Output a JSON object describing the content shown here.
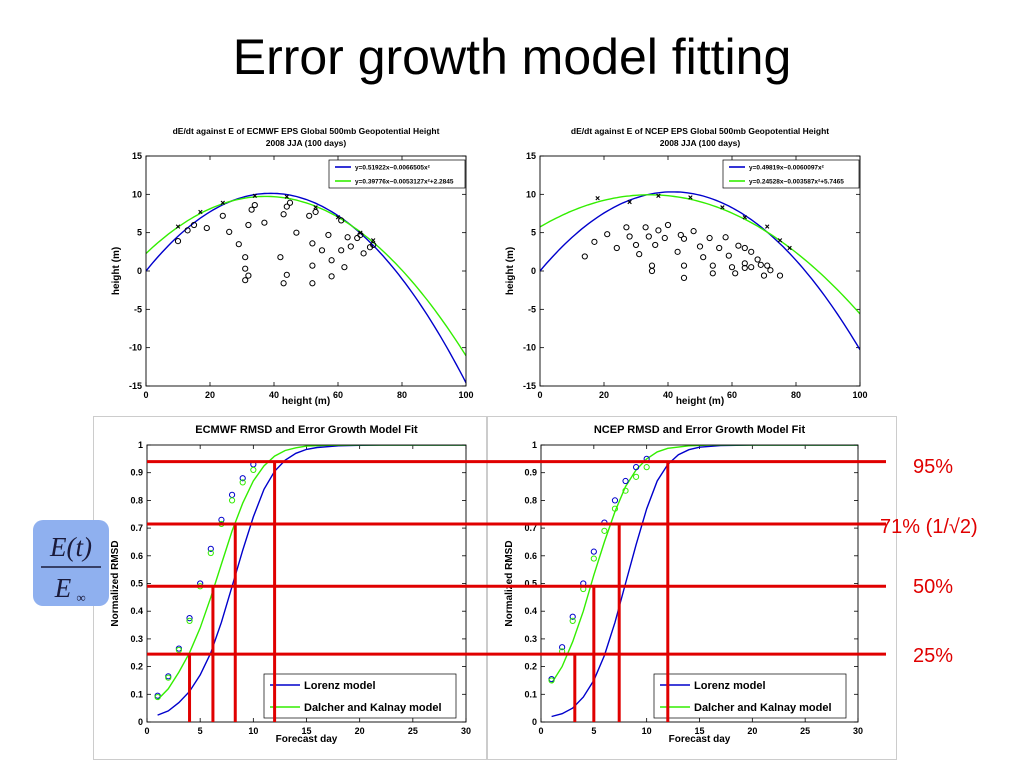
{
  "slide": {
    "title": "Error growth model fitting",
    "formula": {
      "numerator": "E(t)",
      "denominator": "E",
      "subscript": "∞"
    },
    "levels": [
      {
        "label": "95%",
        "value": 0.94
      },
      {
        "label": "71% (1/√2)",
        "value": 0.715
      },
      {
        "label": "50%",
        "value": 0.49
      },
      {
        "label": "25%",
        "value": 0.245
      }
    ],
    "ecmwf_crossings": [
      4,
      6.2,
      8.3,
      12
    ],
    "ncep_crossings": [
      3.2,
      5,
      7.4,
      12
    ],
    "line_color": "#e00000"
  },
  "chart_data": [
    {
      "type": "scatter",
      "title": "dE/dt against E of ECMWF EPS Global 500mb Geopotential Height",
      "subtitle": "2008 JJA (100 days)",
      "xlabel": "height (m)",
      "ylabel": "height (m)",
      "xlim": [
        0,
        100
      ],
      "ylim": [
        -15,
        15
      ],
      "xticks": [
        0,
        20,
        40,
        60,
        80,
        100
      ],
      "yticks": [
        -15,
        -10,
        -5,
        0,
        5,
        10,
        15
      ],
      "legend_position": "top-right",
      "series": [
        {
          "name": "y=0.51922x−0.0066505x²",
          "kind": "curve",
          "color": "#0000cc",
          "coef": [
            0,
            0.51922,
            -0.0066505
          ]
        },
        {
          "name": "y=0.39776x−0.0053127x²+2.2845",
          "kind": "curve",
          "color": "#33ee00",
          "coef": [
            2.2845,
            0.39776,
            -0.0053127
          ]
        },
        {
          "kind": "circles",
          "points": [
            [
              10,
              3.9
            ],
            [
              13,
              5.3
            ],
            [
              15,
              6
            ],
            [
              19,
              5.6
            ],
            [
              24,
              7.2
            ],
            [
              26,
              5.1
            ],
            [
              29,
              3.5
            ],
            [
              31,
              1.8
            ],
            [
              31,
              0.3
            ],
            [
              32,
              -0.6
            ],
            [
              31,
              -1.2
            ],
            [
              32,
              6
            ],
            [
              33,
              8
            ],
            [
              34,
              8.6
            ],
            [
              37,
              6.3
            ],
            [
              43,
              7.4
            ],
            [
              44,
              8.4
            ],
            [
              45,
              8.9
            ],
            [
              42,
              1.8
            ],
            [
              44,
              -0.5
            ],
            [
              43,
              -1.6
            ],
            [
              47,
              5
            ],
            [
              51,
              7.2
            ],
            [
              53,
              7.7
            ],
            [
              52,
              3.6
            ],
            [
              55,
              2.7
            ],
            [
              52,
              0.7
            ],
            [
              52,
              -1.6
            ],
            [
              57,
              4.7
            ],
            [
              58,
              1.4
            ],
            [
              58,
              -0.7
            ],
            [
              61,
              6.6
            ],
            [
              61,
              2.7
            ],
            [
              62,
              0.5
            ],
            [
              63,
              4.4
            ],
            [
              64,
              3.2
            ],
            [
              66,
              4.3
            ],
            [
              67,
              4.7
            ],
            [
              68,
              2.3
            ],
            [
              70,
              3.1
            ],
            [
              71,
              3.4
            ]
          ]
        },
        {
          "kind": "crosses",
          "points": [
            [
              10,
              5.8
            ],
            [
              17,
              7.7
            ],
            [
              24,
              8.9
            ],
            [
              34,
              9.8
            ],
            [
              44,
              9.7
            ],
            [
              53,
              8.3
            ],
            [
              60,
              7
            ],
            [
              67,
              5
            ],
            [
              71,
              4
            ]
          ]
        }
      ]
    },
    {
      "type": "scatter",
      "title": "dE/dt against E of NCEP EPS Global 500mb Geopotential Height",
      "subtitle": "2008 JJA (100 days)",
      "xlabel": "height (m)",
      "ylabel": "height (m)",
      "xlim": [
        0,
        100
      ],
      "ylim": [
        -15,
        15
      ],
      "xticks": [
        0,
        20,
        40,
        60,
        80,
        100
      ],
      "yticks": [
        -15,
        -10,
        -5,
        0,
        5,
        10,
        15
      ],
      "legend_position": "top-right",
      "series": [
        {
          "name": "y=0.49819x−0.0060097x²",
          "kind": "curve",
          "color": "#0000cc",
          "coef": [
            0,
            0.49819,
            -0.0060097
          ]
        },
        {
          "name": "y=0.24528x−0.003587x²+5.7465",
          "kind": "curve",
          "color": "#33ee00",
          "coef": [
            5.7465,
            0.24528,
            -0.003587
          ]
        },
        {
          "kind": "circles",
          "points": [
            [
              14,
              1.9
            ],
            [
              17,
              3.8
            ],
            [
              21,
              4.8
            ],
            [
              24,
              3
            ],
            [
              27,
              5.7
            ],
            [
              28,
              4.5
            ],
            [
              30,
              3.4
            ],
            [
              31,
              2.2
            ],
            [
              33,
              5.7
            ],
            [
              34,
              4.5
            ],
            [
              35,
              0
            ],
            [
              35,
              0.7
            ],
            [
              36,
              3.4
            ],
            [
              37,
              5.3
            ],
            [
              39,
              4.3
            ],
            [
              40,
              6
            ],
            [
              43,
              2.5
            ],
            [
              44,
              4.7
            ],
            [
              45,
              4.2
            ],
            [
              45,
              0.7
            ],
            [
              45,
              -0.9
            ],
            [
              48,
              5.2
            ],
            [
              50,
              3.2
            ],
            [
              51,
              1.8
            ],
            [
              53,
              4.3
            ],
            [
              54,
              0.7
            ],
            [
              54,
              -0.3
            ],
            [
              56,
              3
            ],
            [
              58,
              4.4
            ],
            [
              59,
              2
            ],
            [
              60,
              0.5
            ],
            [
              61,
              -0.3
            ],
            [
              62,
              3.3
            ],
            [
              64,
              3
            ],
            [
              64,
              1
            ],
            [
              64,
              0.4
            ],
            [
              66,
              2.5
            ],
            [
              66,
              0.5
            ],
            [
              68,
              1.5
            ],
            [
              69,
              0.8
            ],
            [
              70,
              -0.6
            ],
            [
              71,
              0.7
            ],
            [
              72,
              0.1
            ],
            [
              75,
              -0.6
            ]
          ]
        },
        {
          "kind": "crosses",
          "points": [
            [
              18,
              9.5
            ],
            [
              28,
              9
            ],
            [
              37,
              9.8
            ],
            [
              47,
              9.6
            ],
            [
              57,
              8.3
            ],
            [
              64,
              7
            ],
            [
              71,
              5.8
            ],
            [
              75,
              4
            ],
            [
              78,
              3
            ]
          ]
        }
      ]
    },
    {
      "type": "line",
      "title": "ECMWF RMSD and Error Growth Model Fit",
      "xlabel": "Forecast day",
      "ylabel": "Normalized RMSD",
      "xlim": [
        0,
        30
      ],
      "ylim": [
        0,
        1
      ],
      "xticks": [
        0,
        5,
        10,
        15,
        20,
        25,
        30
      ],
      "yticks": [
        0,
        0.1,
        0.2,
        0.3,
        0.4,
        0.5,
        0.6,
        0.7,
        0.8,
        0.9,
        1
      ],
      "legend_position": "bottom-right",
      "series": [
        {
          "name": "Lorenz model",
          "kind": "line",
          "color": "#0000cc",
          "points": [
            [
              1,
              0.025
            ],
            [
              2,
              0.04
            ],
            [
              3,
              0.07
            ],
            [
              4,
              0.11
            ],
            [
              5,
              0.17
            ],
            [
              6,
              0.25
            ],
            [
              7,
              0.36
            ],
            [
              8,
              0.49
            ],
            [
              9,
              0.62
            ],
            [
              10,
              0.74
            ],
            [
              11,
              0.84
            ],
            [
              12,
              0.905
            ],
            [
              13,
              0.945
            ],
            [
              14,
              0.97
            ],
            [
              15,
              0.984
            ],
            [
              16,
              0.991
            ],
            [
              18,
              0.997
            ],
            [
              20,
              0.999
            ],
            [
              22,
              1
            ],
            [
              30,
              1
            ]
          ]
        },
        {
          "name": "Dalcher and Kalnay model",
          "kind": "line",
          "color": "#33ee00",
          "points": [
            [
              1,
              0.08
            ],
            [
              2,
              0.12
            ],
            [
              3,
              0.18
            ],
            [
              4,
              0.25
            ],
            [
              5,
              0.34
            ],
            [
              6,
              0.45
            ],
            [
              7,
              0.57
            ],
            [
              8,
              0.69
            ],
            [
              9,
              0.79
            ],
            [
              10,
              0.87
            ],
            [
              11,
              0.925
            ],
            [
              12,
              0.96
            ],
            [
              13,
              0.98
            ],
            [
              14,
              0.99
            ],
            [
              15,
              0.996
            ],
            [
              17,
              0.999
            ],
            [
              20,
              1
            ],
            [
              30,
              1
            ]
          ]
        },
        {
          "kind": "circles",
          "color": "#0000cc",
          "points": [
            [
              1,
              0.095
            ],
            [
              2,
              0.165
            ],
            [
              3,
              0.265
            ],
            [
              4,
              0.375
            ],
            [
              5,
              0.5
            ],
            [
              6,
              0.625
            ],
            [
              7,
              0.73
            ],
            [
              8,
              0.82
            ],
            [
              9,
              0.88
            ],
            [
              10,
              0.93
            ]
          ]
        },
        {
          "kind": "circles",
          "color": "#33ee00",
          "points": [
            [
              1,
              0.09
            ],
            [
              2,
              0.16
            ],
            [
              3,
              0.26
            ],
            [
              4,
              0.365
            ],
            [
              5,
              0.49
            ],
            [
              6,
              0.61
            ],
            [
              7,
              0.715
            ],
            [
              8,
              0.8
            ],
            [
              9,
              0.865
            ],
            [
              10,
              0.91
            ]
          ]
        }
      ]
    },
    {
      "type": "line",
      "title": "NCEP RMSD and Error Growth Model Fit",
      "xlabel": "Forecast day",
      "ylabel": "Normalized RMSD",
      "xlim": [
        0,
        30
      ],
      "ylim": [
        0,
        1
      ],
      "xticks": [
        0,
        5,
        10,
        15,
        20,
        25,
        30
      ],
      "yticks": [
        0,
        0.1,
        0.2,
        0.3,
        0.4,
        0.5,
        0.6,
        0.7,
        0.8,
        0.9,
        1
      ],
      "legend_position": "bottom-right",
      "series": [
        {
          "name": "Lorenz model",
          "kind": "line",
          "color": "#0000cc",
          "points": [
            [
              1,
              0.02
            ],
            [
              2,
              0.03
            ],
            [
              3,
              0.05
            ],
            [
              4,
              0.09
            ],
            [
              5,
              0.15
            ],
            [
              6,
              0.24
            ],
            [
              7,
              0.36
            ],
            [
              8,
              0.5
            ],
            [
              9,
              0.64
            ],
            [
              10,
              0.77
            ],
            [
              11,
              0.87
            ],
            [
              12,
              0.93
            ],
            [
              13,
              0.965
            ],
            [
              14,
              0.983
            ],
            [
              15,
              0.992
            ],
            [
              17,
              0.998
            ],
            [
              20,
              1
            ],
            [
              30,
              1
            ]
          ]
        },
        {
          "name": "Dalcher and Kalnay model",
          "kind": "line",
          "color": "#33ee00",
          "points": [
            [
              1,
              0.14
            ],
            [
              2,
              0.2
            ],
            [
              3,
              0.29
            ],
            [
              4,
              0.4
            ],
            [
              5,
              0.53
            ],
            [
              6,
              0.65
            ],
            [
              7,
              0.76
            ],
            [
              8,
              0.85
            ],
            [
              9,
              0.91
            ],
            [
              10,
              0.95
            ],
            [
              11,
              0.975
            ],
            [
              12,
              0.988
            ],
            [
              14,
              0.997
            ],
            [
              16,
              1
            ],
            [
              30,
              1
            ]
          ]
        },
        {
          "kind": "circles",
          "color": "#0000cc",
          "points": [
            [
              1,
              0.155
            ],
            [
              2,
              0.27
            ],
            [
              3,
              0.38
            ],
            [
              4,
              0.5
            ],
            [
              5,
              0.615
            ],
            [
              6,
              0.72
            ],
            [
              7,
              0.8
            ],
            [
              8,
              0.87
            ],
            [
              9,
              0.92
            ],
            [
              10,
              0.95
            ]
          ]
        },
        {
          "kind": "circles",
          "color": "#33ee00",
          "points": [
            [
              1,
              0.15
            ],
            [
              2,
              0.255
            ],
            [
              3,
              0.365
            ],
            [
              4,
              0.48
            ],
            [
              5,
              0.59
            ],
            [
              6,
              0.69
            ],
            [
              7,
              0.77
            ],
            [
              8,
              0.835
            ],
            [
              9,
              0.885
            ],
            [
              10,
              0.92
            ]
          ]
        }
      ]
    }
  ]
}
